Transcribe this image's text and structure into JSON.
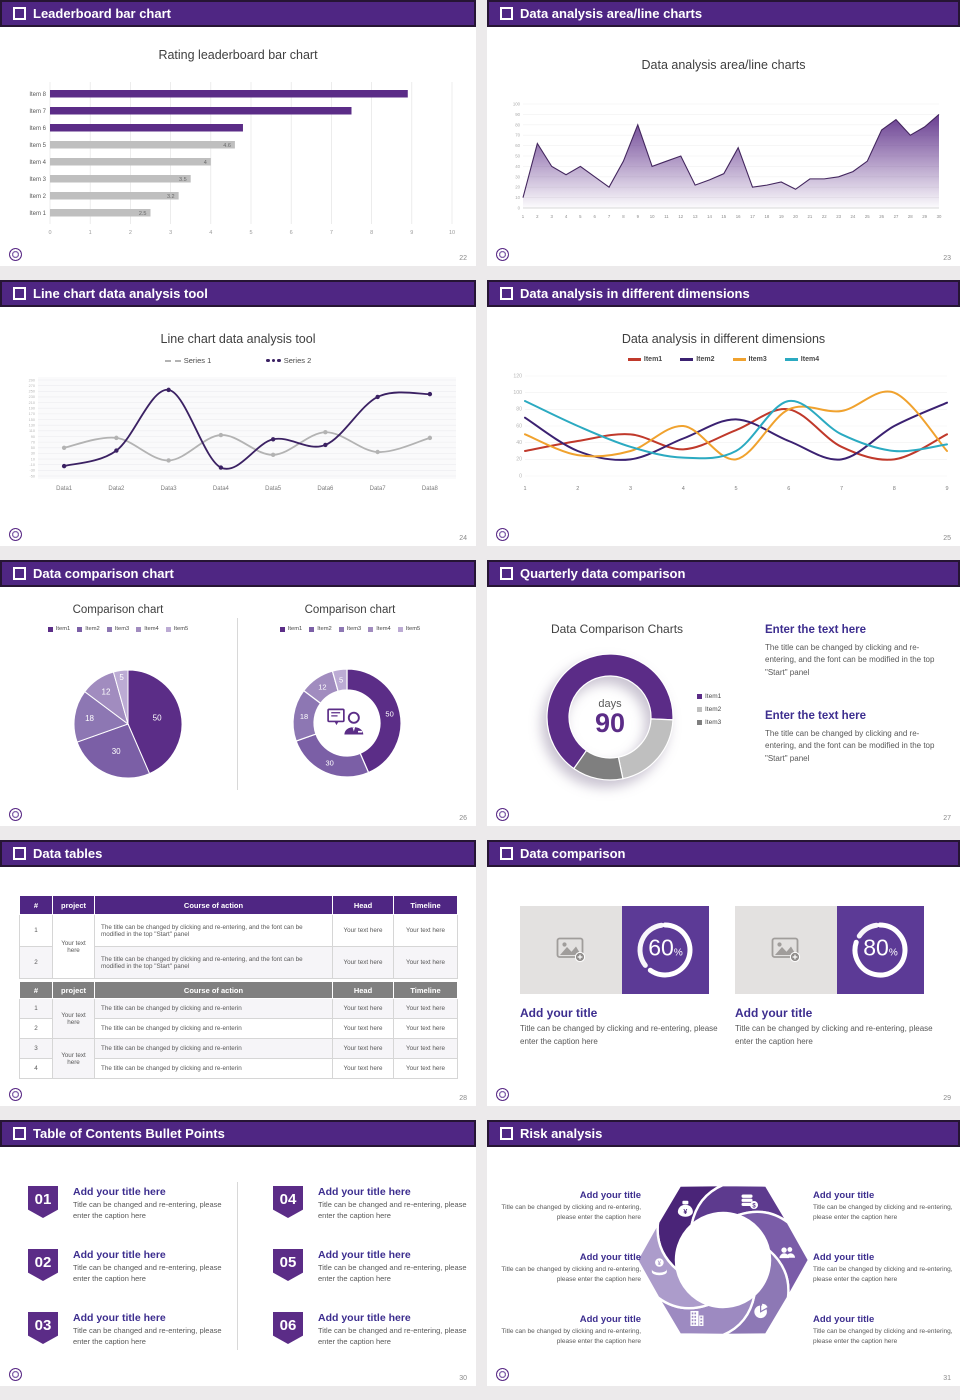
{
  "page": {
    "background": "#ECEAEB"
  },
  "brand": {
    "header_bg": "#4F2683",
    "accent_purple": "#5B2C87",
    "heading_purple": "#3D2E8F",
    "body_text": "#595959",
    "gray_bar": "#BFBFBF"
  },
  "slides": {
    "leaderboard": {
      "header": "Leaderboard bar chart",
      "page_num": "22",
      "chart_title": "Rating leaderboard bar chart"
    },
    "area": {
      "header": "Data analysis area/line charts",
      "page_num": "23",
      "chart_title": "Data analysis area/line charts"
    },
    "line_tool": {
      "header": "Line chart data analysis tool",
      "page_num": "24",
      "chart_title": "Line chart data analysis tool",
      "legend": [
        "Series 1",
        "Series 2"
      ]
    },
    "dimensions": {
      "header": "Data analysis in different dimensions",
      "page_num": "25",
      "chart_title": "Data analysis in different dimensions",
      "legend": [
        "Item1",
        "Item2",
        "Item3",
        "Item4"
      ]
    },
    "comparison": {
      "header": "Data comparison chart",
      "page_num": "26",
      "left_title": "Comparison chart",
      "right_title": "Comparison chart",
      "legend": [
        "Item1",
        "Item2",
        "Item3",
        "Item4",
        "Item5"
      ]
    },
    "quarterly": {
      "header": "Quarterly data comparison",
      "page_num": "27",
      "chart_title": "Data Comparison Charts",
      "center_label": "days",
      "center_value": "90",
      "legend": [
        "Item1",
        "Item2",
        "Item3"
      ],
      "blocks": [
        {
          "title": "Enter the text here",
          "body": "The title can be changed by clicking and re-entering, and the font can be modified in the top \"Start\" panel"
        },
        {
          "title": "Enter the text here",
          "body": "The title can be changed by clicking and re-entering, and the font can be modified in the top \"Start\" panel"
        }
      ]
    },
    "tables": {
      "header": "Data tables",
      "page_num": "28",
      "table1": {
        "columns": [
          "#",
          "project",
          "Course of action",
          "Head",
          "Timeline"
        ],
        "project_text": "Your text here",
        "rows": [
          {
            "num": "1",
            "action": "The title can be changed by clicking and re-entering, and the font can be modified in the top \"Start\" panel",
            "head": "Your text here",
            "timeline": "Your text here"
          },
          {
            "num": "2",
            "action": "The title can be changed by clicking and re-entering, and the font can be modified in the top \"Start\" panel",
            "head": "Your text here",
            "timeline": "Your text here"
          }
        ]
      },
      "table2": {
        "columns": [
          "#",
          "project",
          "Course of action",
          "Head",
          "Timeline"
        ],
        "project_text": "Your text here",
        "rows": [
          {
            "num": "1",
            "action": "The title can be changed by clicking and re-enterin",
            "head": "Your text here",
            "timeline": "Your text here"
          },
          {
            "num": "2",
            "action": "The title can be changed by clicking and re-enterin",
            "head": "Your text here",
            "timeline": "Your text here"
          },
          {
            "num": "3",
            "action": "The title can be changed by clicking and re-enterin",
            "head": "Your text here",
            "timeline": "Your text here"
          },
          {
            "num": "4",
            "action": "The title can be changed by clicking and re-enterin",
            "head": "Your text here",
            "timeline": "Your text here"
          }
        ]
      }
    },
    "data_comparison": {
      "header": "Data comparison",
      "page_num": "29",
      "cards": [
        {
          "percent": "60",
          "suffix": "%",
          "title": "Add your title",
          "caption": "Title can be changed by clicking and re-entering, please enter the caption here"
        },
        {
          "percent": "80",
          "suffix": "%",
          "title": "Add your title",
          "caption": "Title can be changed by clicking and re-entering, please enter the caption here"
        }
      ]
    },
    "toc": {
      "header": "Table of Contents Bullet Points",
      "page_num": "30",
      "items": [
        {
          "num": "01",
          "title": "Add your title here",
          "caption": "Title can be changed and re-entering, please enter the caption here"
        },
        {
          "num": "02",
          "title": "Add your title here",
          "caption": "Title can be changed and re-entering, please enter the caption here"
        },
        {
          "num": "03",
          "title": "Add your title here",
          "caption": "Title can be changed and re-entering, please enter the caption here"
        },
        {
          "num": "04",
          "title": "Add your title here",
          "caption": "Title can be changed and re-entering, please enter the caption here"
        },
        {
          "num": "05",
          "title": "Add your title here",
          "caption": "Title can be changed and re-entering, please enter the caption here"
        },
        {
          "num": "06",
          "title": "Add your title here",
          "caption": "Title can be changed and re-entering, please enter the caption here"
        }
      ]
    },
    "risk": {
      "header": "Risk analysis",
      "page_num": "31",
      "currency": "¥",
      "dollar": "$",
      "blocks": [
        {
          "title": "Add your title",
          "caption": "Title can be changed by clicking and re-entering, please enter the caption here"
        },
        {
          "title": "Add your title",
          "caption": "Title can be changed by clicking and re-entering, please enter the caption here"
        },
        {
          "title": "Add your title",
          "caption": "Title can be changed by clicking and re-entering, please enter the caption here"
        },
        {
          "title": "Add your title",
          "caption": "Title can be changed by clicking and re-entering, please enter the caption here"
        },
        {
          "title": "Add your title",
          "caption": "Title can be changed by clicking and re-entering, please enter the caption here"
        },
        {
          "title": "Add your title",
          "caption": "Title can be changed by clicking and re-entering, please enter the caption here"
        }
      ]
    }
  },
  "chart_data": [
    {
      "id": "chart-bar-22",
      "type": "bar",
      "orientation": "horizontal",
      "title": "Rating leaderboard bar chart",
      "categories": [
        "Item 8",
        "Item 7",
        "Item 6",
        "Item 5",
        "Item 4",
        "Item 3",
        "Item 2",
        "Item 1"
      ],
      "values": [
        8.9,
        7.5,
        4.8,
        4.6,
        4,
        3.5,
        3.2,
        2.5
      ],
      "bar_colors": [
        "#5B2C87",
        "#5B2C87",
        "#5B2C87",
        "#BFBFBF",
        "#BFBFBF",
        "#BFBFBF",
        "#BFBFBF",
        "#BFBFBF"
      ],
      "data_labels": [
        "",
        "",
        "",
        "4.6",
        "4",
        "3.5",
        "3.2",
        "2.5"
      ],
      "xlabel": "",
      "ylabel": "",
      "xlim": [
        0,
        10
      ],
      "xticks": [
        0,
        1,
        2,
        3,
        4,
        5,
        6,
        7,
        8,
        9,
        10
      ],
      "grid": true
    },
    {
      "id": "chart-area-23",
      "type": "area",
      "title": "Data analysis area/line charts",
      "x": [
        1,
        2,
        3,
        4,
        5,
        6,
        7,
        8,
        9,
        10,
        11,
        12,
        13,
        14,
        15,
        16,
        17,
        18,
        19,
        20,
        21,
        22,
        23,
        24,
        25,
        26,
        27,
        28,
        29,
        30
      ],
      "values": [
        10,
        62,
        40,
        32,
        40,
        30,
        20,
        45,
        80,
        40,
        45,
        50,
        22,
        27,
        33,
        58,
        20,
        22,
        25,
        18,
        28,
        28,
        30,
        35,
        45,
        75,
        85,
        70,
        78,
        90
      ],
      "ylim": [
        0,
        100
      ],
      "yticks": [
        0,
        10,
        20,
        30,
        40,
        50,
        60,
        70,
        80,
        90,
        100
      ],
      "line_color": "#43265E",
      "fill_color": "#5B2C87",
      "grid": true
    },
    {
      "id": "chart-line-24",
      "type": "line",
      "title": "Line chart data analysis tool",
      "x_categories": [
        "Data1",
        "Data2",
        "Data3",
        "Data4",
        "Data5",
        "Data6",
        "Data7",
        "Data8"
      ],
      "ylim": [
        -50,
        290
      ],
      "yticks": [
        -50,
        -30,
        -10,
        10,
        30,
        50,
        70,
        90,
        110,
        130,
        150,
        170,
        190,
        210,
        230,
        250,
        270,
        290
      ],
      "legend_position": "top",
      "series": [
        {
          "name": "Series 1",
          "color": "#B3B3B3",
          "values": [
            50,
            85,
            5,
            95,
            25,
            105,
            35,
            85
          ]
        },
        {
          "name": "Series 2",
          "color": "#3B2163",
          "values": [
            -15,
            40,
            255,
            -20,
            80,
            60,
            230,
            240
          ]
        }
      ]
    },
    {
      "id": "chart-line-25",
      "type": "line",
      "title": "Data analysis in different dimensions",
      "x_categories": [
        "1",
        "2",
        "3",
        "4",
        "5",
        "6",
        "7",
        "8",
        "9"
      ],
      "ylim": [
        0,
        120
      ],
      "yticks": [
        0,
        20,
        40,
        60,
        80,
        100,
        120
      ],
      "legend_position": "top",
      "series": [
        {
          "name": "Item1",
          "color": "#C0392B",
          "values": [
            30,
            42,
            50,
            32,
            55,
            80,
            35,
            20,
            50
          ]
        },
        {
          "name": "Item2",
          "color": "#3B2171",
          "values": [
            70,
            30,
            20,
            45,
            68,
            42,
            20,
            60,
            88
          ]
        },
        {
          "name": "Item3",
          "color": "#F0A22E",
          "values": [
            50,
            25,
            30,
            60,
            20,
            80,
            78,
            100,
            30
          ]
        },
        {
          "name": "Item4",
          "color": "#2BAAC1",
          "values": [
            90,
            60,
            35,
            22,
            30,
            90,
            50,
            30,
            38
          ]
        }
      ]
    },
    {
      "id": "chart-pie-26",
      "type": "pie",
      "title": "Comparison chart",
      "legend": [
        "Item1",
        "Item2",
        "Item3",
        "Item4",
        "Item5"
      ],
      "values": [
        50,
        30,
        18,
        12,
        5
      ],
      "labels": [
        "50",
        "30",
        "18",
        "12",
        "5"
      ],
      "colors": [
        "#5B2D87",
        "#7B5FA6",
        "#8D77B3",
        "#A18CBF",
        "#BCABD4"
      ]
    },
    {
      "id": "chart-donut-26",
      "type": "donut",
      "title": "Comparison chart",
      "legend": [
        "Item1",
        "Item2",
        "Item3",
        "Item4",
        "Item5"
      ],
      "values": [
        50,
        30,
        18,
        12,
        5
      ],
      "labels": [
        "50",
        "30",
        "18",
        "12",
        "5"
      ],
      "colors": [
        "#5B2D87",
        "#7B5FA6",
        "#8D77B3",
        "#A18CBF",
        "#BCABD4"
      ],
      "center_icon": "presenter"
    },
    {
      "id": "chart-donut-27",
      "type": "donut",
      "title": "Data Comparison Charts",
      "legend": [
        "Item1",
        "Item2",
        "Item3"
      ],
      "values": [
        66,
        21,
        13
      ],
      "colors": [
        "#5B2C87",
        "#BFBFBF",
        "#7F7F7F"
      ],
      "start_angle_deg": 125,
      "center": {
        "label": "days",
        "value": "90"
      }
    },
    {
      "id": "ring-60",
      "type": "progress",
      "value": 60,
      "label": "60",
      "suffix": "%"
    },
    {
      "id": "ring-80",
      "type": "progress",
      "value": 80,
      "label": "80",
      "suffix": "%"
    },
    {
      "id": "pinwheel-31",
      "type": "pinwheel",
      "colors": [
        "#4A2478",
        "#5D3A8E",
        "#7A5CA8",
        "#8D78B5",
        "#9D8AC1",
        "#AC9CCB"
      ],
      "icons": [
        "money-bag",
        "coins",
        "people",
        "pie-chart",
        "building",
        "hand-coin"
      ]
    }
  ]
}
